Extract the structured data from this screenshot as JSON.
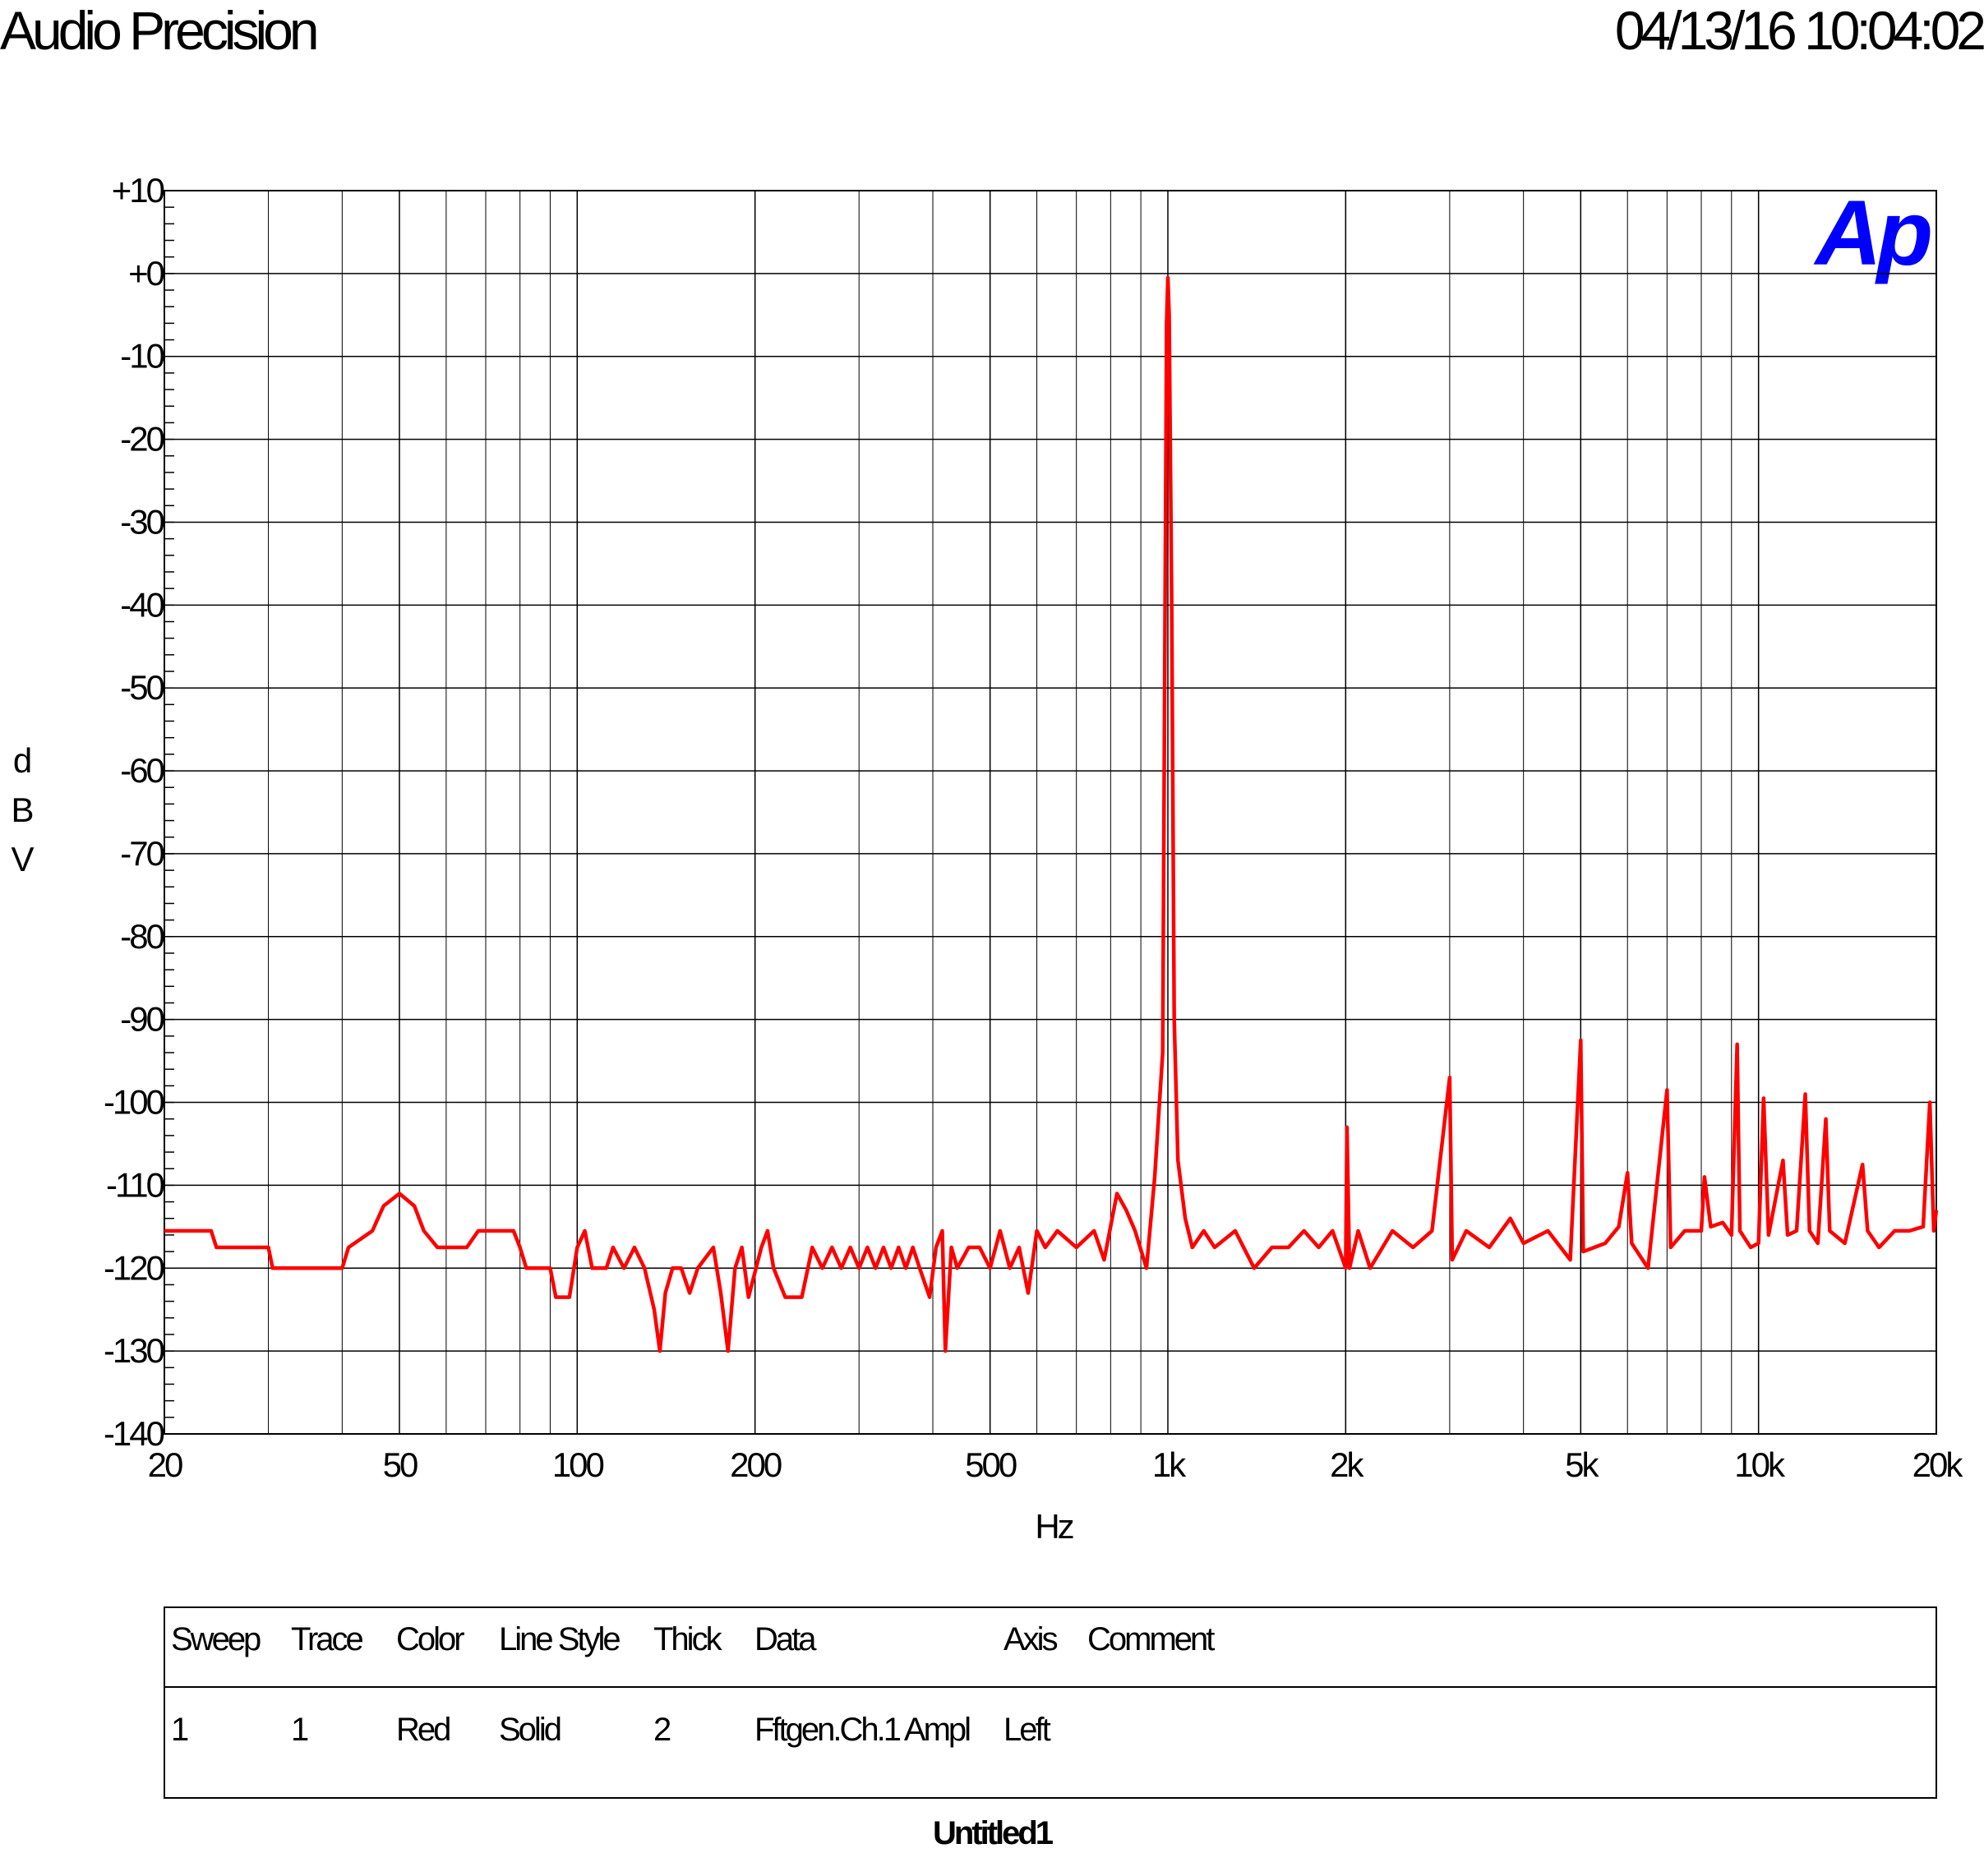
{
  "header": {
    "title": "Audio Precision",
    "timestamp": "04/13/16 10:04:02",
    "logo": "Ap"
  },
  "chart_data": {
    "type": "line",
    "ylabel": "dBV",
    "xlabel": "Hz",
    "x": [
      20,
      24,
      24.5,
      30,
      30.5,
      40,
      41,
      45,
      47,
      50,
      53,
      55,
      58,
      65,
      68,
      78,
      80,
      82,
      90,
      92,
      97,
      100,
      103,
      106,
      112,
      115,
      120,
      125,
      130,
      135,
      138,
      141,
      145,
      150,
      155,
      160,
      170,
      175,
      180,
      185,
      190,
      195,
      205,
      210,
      215,
      225,
      240,
      250,
      260,
      270,
      280,
      290,
      300,
      310,
      320,
      330,
      340,
      350,
      360,
      370,
      380,
      395,
      405,
      415,
      420,
      430,
      440,
      460,
      480,
      500,
      520,
      540,
      560,
      580,
      600,
      620,
      650,
      700,
      750,
      780,
      820,
      850,
      880,
      920,
      950,
      980,
      995,
      1000,
      1005,
      1015,
      1025,
      1040,
      1070,
      1100,
      1150,
      1200,
      1300,
      1400,
      1500,
      1600,
      1700,
      1800,
      1900,
      2000,
      2010,
      2030,
      2100,
      2200,
      2400,
      2600,
      2800,
      3000,
      3030,
      3200,
      3500,
      3800,
      4000,
      4400,
      4800,
      5000,
      5050,
      5500,
      5800,
      6000,
      6100,
      6500,
      7000,
      7100,
      7500,
      8000,
      8100,
      8300,
      8700,
      9000,
      9200,
      9300,
      9700,
      10000,
      10200,
      10400,
      11000,
      11200,
      11600,
      12000,
      12200,
      12600,
      13000,
      13200,
      14000,
      15000,
      15300,
      16000,
      17000,
      18000,
      19000,
      19500,
      19800,
      20000
    ],
    "values": [
      -115.5,
      -115.5,
      -117.5,
      -117.5,
      -120,
      -120,
      -117.5,
      -115.5,
      -112.5,
      -111,
      -112.5,
      -115.5,
      -117.5,
      -117.5,
      -115.5,
      -115.5,
      -117.5,
      -120,
      -120,
      -123.5,
      -123.5,
      -117.5,
      -115.5,
      -120,
      -120,
      -117.5,
      -120,
      -117.5,
      -120,
      -125,
      -130,
      -123,
      -120,
      -120,
      -123,
      -120,
      -117.5,
      -123,
      -130,
      -120,
      -117.5,
      -123.5,
      -117.5,
      -115.5,
      -120,
      -123.5,
      -123.5,
      -117.5,
      -120,
      -117.5,
      -120,
      -117.5,
      -120,
      -117.5,
      -120,
      -117.5,
      -120,
      -117.5,
      -120,
      -117.5,
      -120,
      -123.5,
      -117.5,
      -115.5,
      -130,
      -117.5,
      -120,
      -117.5,
      -117.5,
      -120,
      -115.5,
      -120,
      -117.5,
      -123,
      -115.5,
      -117.5,
      -115.5,
      -117.5,
      -115.5,
      -119,
      -111,
      -113,
      -115.5,
      -120,
      -109,
      -94,
      -6,
      -0.5,
      -5,
      -40,
      -90,
      -107,
      -114,
      -117.5,
      -115.5,
      -117.5,
      -115.5,
      -120,
      -117.5,
      -117.5,
      -115.5,
      -117.5,
      -115.5,
      -120,
      -103,
      -120,
      -115.5,
      -120,
      -115.5,
      -117.5,
      -115.5,
      -97,
      -119,
      -115.5,
      -117.5,
      -114,
      -117,
      -115.5,
      -119,
      -92.5,
      -118,
      -117,
      -115,
      -108.5,
      -117,
      -120,
      -98.5,
      -117.5,
      -115.5,
      -115.5,
      -109,
      -115,
      -114.5,
      -116,
      -93,
      -115.5,
      -117.5,
      -117,
      -99.5,
      -116,
      -107,
      -116,
      -115.5,
      -99,
      -115.5,
      -117,
      -102,
      -115.5,
      -117,
      -107.5,
      -115.5,
      -117.5,
      -115.5,
      -115.5,
      -115,
      -100,
      -115.5,
      -113
    ],
    "color": "#ff0000",
    "xlim": [
      20,
      20000
    ],
    "xlog": true,
    "xticks": [
      20,
      50,
      100,
      200,
      500,
      {
        "value": 1000,
        "label": "1k"
      },
      {
        "value": 2000,
        "label": "2k"
      },
      {
        "value": 5000,
        "label": "5k"
      },
      {
        "value": 10000,
        "label": "10k"
      },
      {
        "value": 20000,
        "label": "20k"
      }
    ],
    "ylim": [
      -140,
      10
    ],
    "yticks": [
      {
        "value": 10,
        "label": "+10"
      },
      {
        "value": 0,
        "label": "+0"
      },
      -10,
      -20,
      -30,
      -40,
      -50,
      -60,
      -70,
      -80,
      -90,
      -100,
      -110,
      -120,
      -130,
      -140
    ],
    "grid": true
  },
  "table": {
    "headers": [
      "Sweep",
      "Trace",
      "Color",
      "Line Style",
      "Thick",
      "Data",
      "Axis",
      "Comment"
    ],
    "rows": [
      [
        "1",
        "1",
        "Red",
        "Solid",
        "2",
        "Fftgen.Ch.1 Ampl",
        "Left"
      ]
    ]
  },
  "footer": "Untitled1"
}
